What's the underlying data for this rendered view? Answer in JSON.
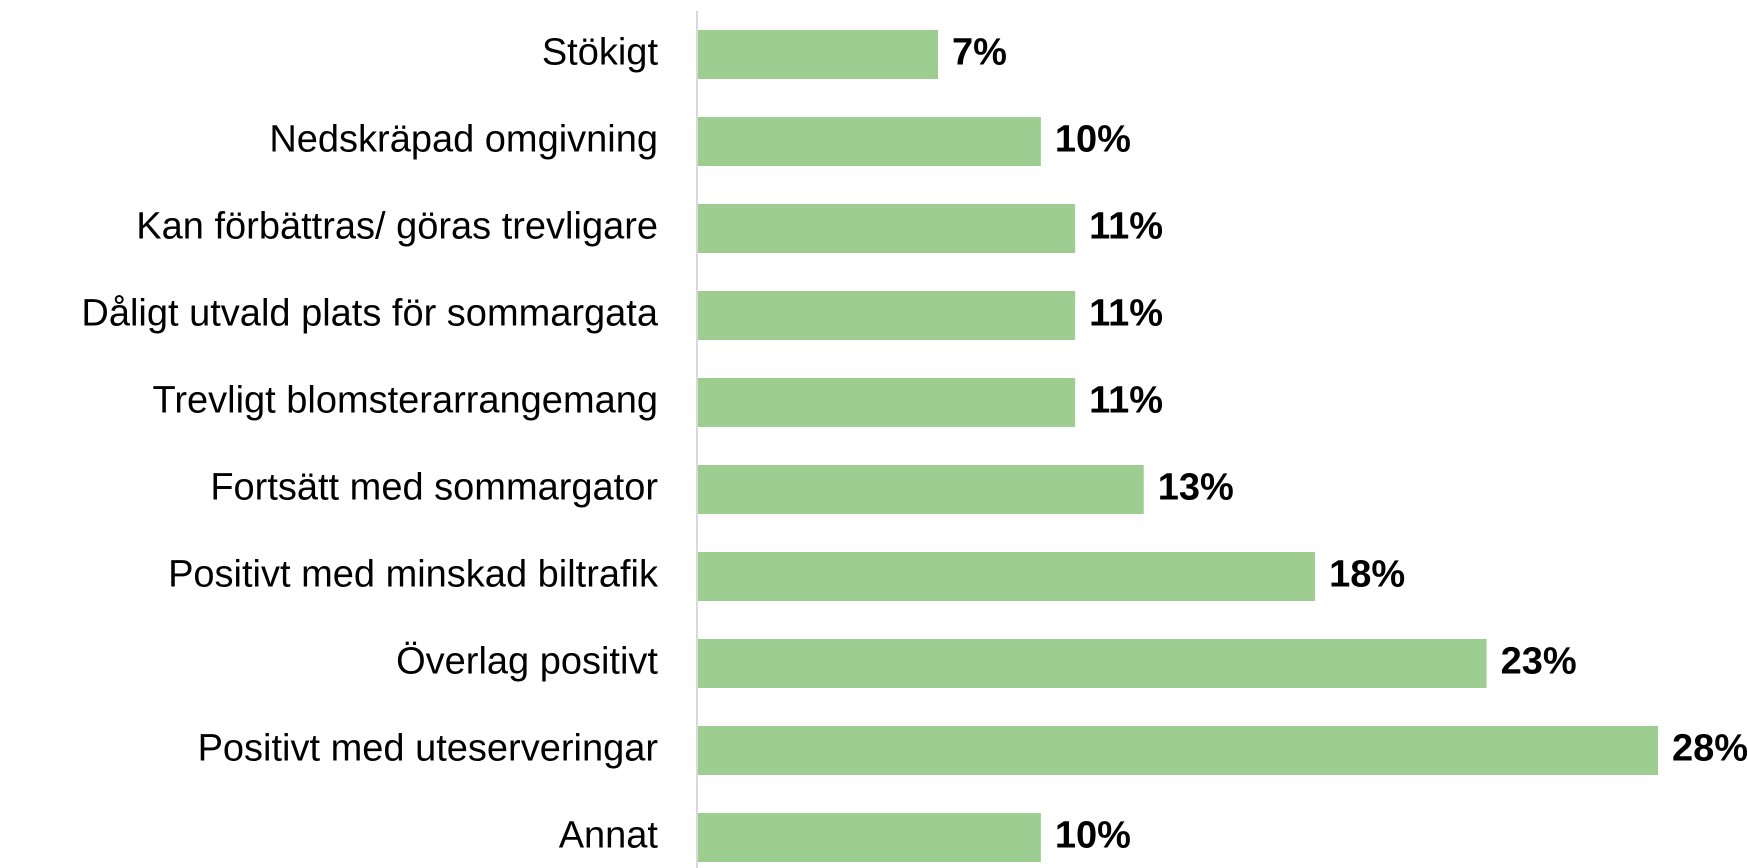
{
  "chart_data": {
    "type": "barh",
    "categories": [
      "Stökigt",
      "Nedskräpad omgivning",
      "Kan förbättras/ göras trevligare",
      "Dåligt utvald plats för sommargata",
      "Trevligt blomsterarrangemang",
      "Fortsätt med sommargator",
      "Positivt med minskad biltrafik",
      "Överlag positivt",
      "Positivt med uteserveringar",
      "Annat"
    ],
    "values": [
      7,
      10,
      11,
      11,
      11,
      13,
      18,
      23,
      28,
      10
    ],
    "value_labels": [
      "7%",
      "10%",
      "11%",
      "11%",
      "11%",
      "13%",
      "18%",
      "23%",
      "28%",
      "10%"
    ],
    "color": "#9dcd91"
  }
}
